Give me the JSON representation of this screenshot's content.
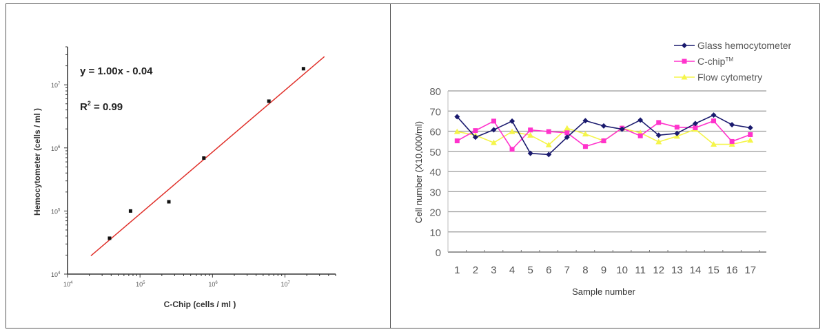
{
  "chart_data": [
    {
      "type": "scatter",
      "xscale": "log",
      "yscale": "log",
      "xlabel": "C-Chip (cells / ml )",
      "ylabel": "Hemocytometer (cells / ml )",
      "xlim": [
        10000,
        50000000
      ],
      "ylim": [
        10000,
        40000000
      ],
      "xticks": [
        {
          "base": "10",
          "exp": "4",
          "value": 10000
        },
        {
          "base": "10",
          "exp": "5",
          "value": 100000
        },
        {
          "base": "10",
          "exp": "6",
          "value": 1000000
        },
        {
          "base": "10",
          "exp": "7",
          "value": 10000000
        }
      ],
      "yticks": [
        {
          "base": "10",
          "exp": "4",
          "value": 10000
        },
        {
          "base": "10",
          "exp": "5",
          "value": 100000
        },
        {
          "base": "10",
          "exp": "6",
          "value": 1000000
        },
        {
          "base": "10",
          "exp": "7",
          "value": 10000000
        }
      ],
      "points": [
        {
          "x": 38000,
          "y": 37000
        },
        {
          "x": 74000,
          "y": 100000
        },
        {
          "x": 250000,
          "y": 140000
        },
        {
          "x": 760000,
          "y": 690000
        },
        {
          "x": 6000000,
          "y": 5500000
        },
        {
          "x": 18000000,
          "y": 18000000
        }
      ],
      "fit_line": {
        "x": [
          21000,
          35000000
        ],
        "y": [
          19500,
          28000000
        ],
        "color": "#e0302a"
      },
      "annotations": {
        "equation": "y = 1.00x - 0.04",
        "r2_label": "R",
        "r2_exp": "2",
        "r2_value": " = 0.99"
      },
      "grid": false
    },
    {
      "type": "line",
      "xlabel": "Sample number",
      "ylabel": "Cell number (X10,000/ml)",
      "ylim": [
        0,
        80
      ],
      "yticks": [
        "0",
        "10",
        "20",
        "30",
        "40",
        "50",
        "60",
        "70",
        "80"
      ],
      "categories": [
        "1",
        "2",
        "3",
        "4",
        "5",
        "6",
        "7",
        "8",
        "9",
        "10",
        "11",
        "12",
        "13",
        "14",
        "15",
        "16",
        "17"
      ],
      "grid": true,
      "legend_position": "top-right",
      "series": [
        {
          "name": "Glass hemocytometer",
          "color": "#1a1a6e",
          "marker": "diamond",
          "values": [
            67.2,
            57,
            60.7,
            65,
            49,
            48.4,
            57,
            65.2,
            62.6,
            61,
            65.5,
            58,
            58.9,
            63.8,
            68,
            63.2,
            61.7
          ]
        },
        {
          "name": "C-chip",
          "name_sup": "TM",
          "color": "#ff33cc",
          "marker": "square",
          "values": [
            55.2,
            60.3,
            65,
            51,
            60.6,
            59.8,
            59.2,
            52.4,
            55.2,
            61.5,
            57.7,
            64.3,
            62,
            61.7,
            65.1,
            54.9,
            58.3
          ]
        },
        {
          "name": "Flow cytometry",
          "color": "#f5f54a",
          "marker": "triangle",
          "values": [
            59.8,
            58,
            54.3,
            59.8,
            58,
            53.2,
            61.5,
            58.6,
            55.2,
            61.5,
            59.2,
            54.7,
            57.5,
            60.9,
            53.5,
            53.5,
            55.5
          ]
        }
      ]
    }
  ]
}
